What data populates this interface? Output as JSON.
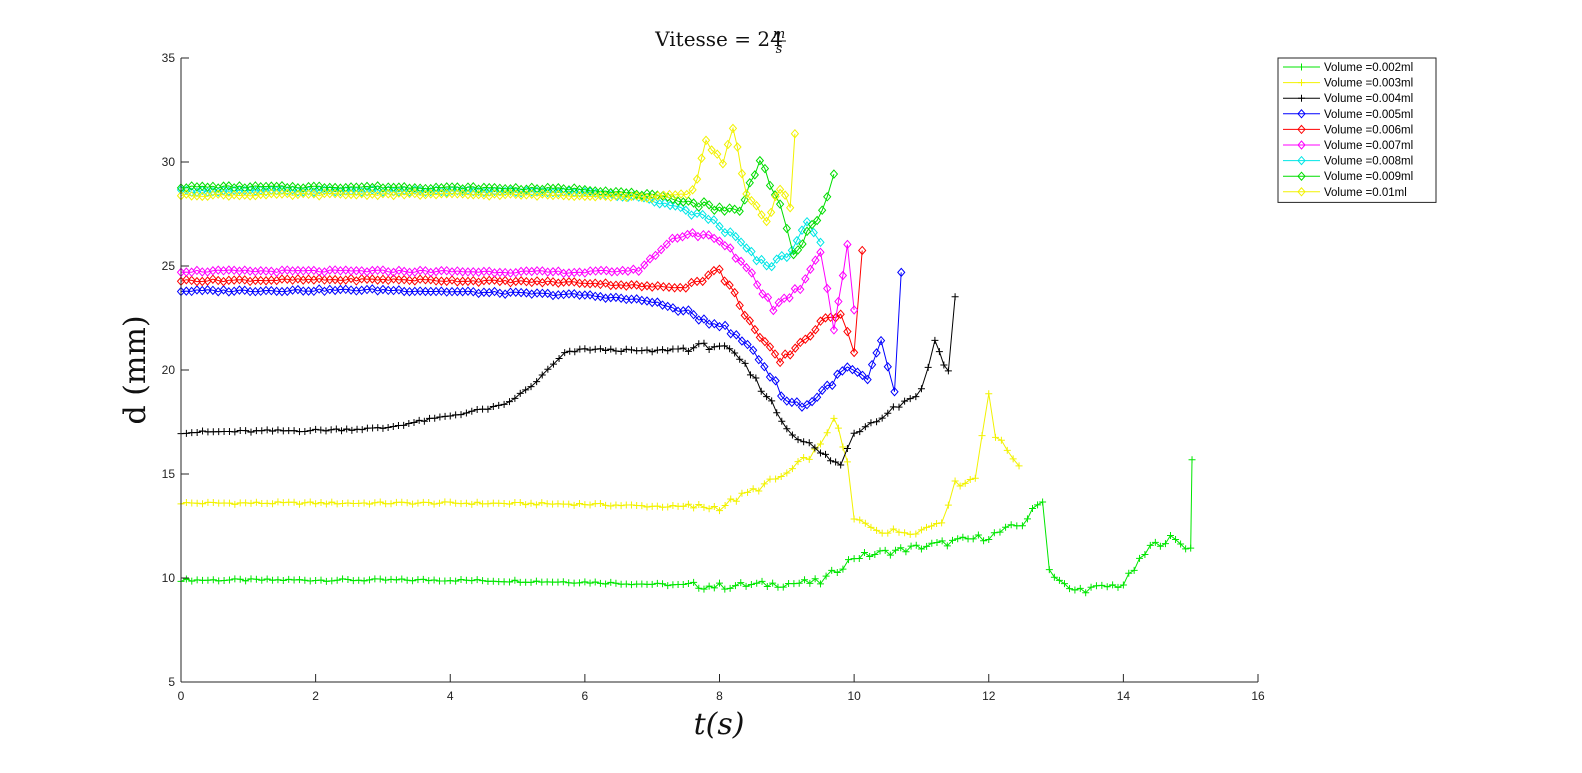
{
  "chart_data": {
    "type": "line",
    "title_main": "Vitesse = 24",
    "title_frac_num": "m",
    "title_frac_den": "s",
    "xlabel": "t(s)",
    "ylabel": "d (mm)",
    "xlim": [
      0,
      16
    ],
    "ylim": [
      5,
      35
    ],
    "x_ticks": [
      "0",
      "2",
      "4",
      "6",
      "8",
      "10",
      "12",
      "14",
      "16"
    ],
    "y_ticks": [
      "5",
      "10",
      "15",
      "20",
      "25",
      "30",
      "35"
    ],
    "grid": false,
    "legend_position": "top-right-outside",
    "series": [
      {
        "name": "Volume =0.002ml",
        "color": "#00e600",
        "marker": "plus",
        "points": [
          [
            0,
            9.9
          ],
          [
            2,
            9.9
          ],
          [
            4,
            9.9
          ],
          [
            6,
            9.8
          ],
          [
            7,
            9.7
          ],
          [
            8,
            9.6
          ],
          [
            9.5,
            9.8
          ],
          [
            10,
            11.0
          ],
          [
            11,
            11.5
          ],
          [
            12,
            12.0
          ],
          [
            12.5,
            12.6
          ],
          [
            12.8,
            13.8
          ],
          [
            12.9,
            10.4
          ],
          [
            13.2,
            9.4
          ],
          [
            13.6,
            9.5
          ],
          [
            14,
            9.7
          ],
          [
            14.4,
            11.5
          ],
          [
            14.7,
            11.9
          ],
          [
            15.0,
            11.4
          ],
          [
            15.02,
            15.8
          ]
        ]
      },
      {
        "name": "Volume =0.003ml",
        "color": "#f2f200",
        "marker": "plus",
        "points": [
          [
            0,
            13.6
          ],
          [
            2,
            13.6
          ],
          [
            4,
            13.6
          ],
          [
            6,
            13.55
          ],
          [
            7,
            13.45
          ],
          [
            8,
            13.4
          ],
          [
            8.5,
            14.2
          ],
          [
            9,
            15.0
          ],
          [
            9.5,
            16.3
          ],
          [
            9.7,
            17.8
          ],
          [
            9.9,
            15.5
          ],
          [
            10.0,
            12.8
          ],
          [
            10.5,
            12.2
          ],
          [
            11,
            12.3
          ],
          [
            11.3,
            12.8
          ],
          [
            11.5,
            14.5
          ],
          [
            11.8,
            14.8
          ],
          [
            12.0,
            19.0
          ],
          [
            12.1,
            16.8
          ],
          [
            12.45,
            15.5
          ]
        ]
      },
      {
        "name": "Volume =0.004ml",
        "color": "#000000",
        "marker": "plus",
        "points": [
          [
            0,
            17.0
          ],
          [
            2,
            17.1
          ],
          [
            3,
            17.2
          ],
          [
            4,
            17.8
          ],
          [
            4.8,
            18.3
          ],
          [
            5.2,
            19.2
          ],
          [
            5.7,
            20.8
          ],
          [
            6,
            21.0
          ],
          [
            7,
            20.9
          ],
          [
            8,
            21.2
          ],
          [
            8.3,
            20.5
          ],
          [
            8.7,
            18.8
          ],
          [
            9,
            17.2
          ],
          [
            9.5,
            16.0
          ],
          [
            9.8,
            15.4
          ],
          [
            10.0,
            17.0
          ],
          [
            10.5,
            18.0
          ],
          [
            11,
            19.0
          ],
          [
            11.2,
            21.4
          ],
          [
            11.4,
            19.9
          ],
          [
            11.5,
            23.5
          ]
        ]
      },
      {
        "name": "Volume =0.005ml",
        "color": "#0000ff",
        "marker": "diamond",
        "points": [
          [
            0,
            23.8
          ],
          [
            3,
            23.85
          ],
          [
            6,
            23.6
          ],
          [
            7,
            23.3
          ],
          [
            8,
            22.2
          ],
          [
            8.5,
            21.0
          ],
          [
            9,
            18.5
          ],
          [
            9.3,
            18.3
          ],
          [
            9.6,
            19.2
          ],
          [
            9.9,
            20.1
          ],
          [
            10.2,
            19.5
          ],
          [
            10.4,
            21.3
          ],
          [
            10.6,
            19.0
          ],
          [
            10.7,
            24.6
          ]
        ]
      },
      {
        "name": "Volume =0.006ml",
        "color": "#ff0000",
        "marker": "diamond",
        "points": [
          [
            0,
            24.3
          ],
          [
            3,
            24.35
          ],
          [
            6,
            24.2
          ],
          [
            7,
            24.0
          ],
          [
            7.5,
            24.0
          ],
          [
            8,
            24.8
          ],
          [
            8.3,
            23.2
          ],
          [
            8.6,
            21.5
          ],
          [
            8.9,
            20.4
          ],
          [
            9.2,
            21.3
          ],
          [
            9.5,
            22.2
          ],
          [
            9.8,
            22.8
          ],
          [
            10.0,
            21.0
          ],
          [
            10.12,
            25.8
          ]
        ]
      },
      {
        "name": "Volume =0.007ml",
        "color": "#ff00ff",
        "marker": "diamond",
        "points": [
          [
            0,
            24.75
          ],
          [
            3,
            24.75
          ],
          [
            6,
            24.7
          ],
          [
            6.8,
            24.8
          ],
          [
            7.3,
            26.3
          ],
          [
            7.6,
            26.6
          ],
          [
            8,
            26.2
          ],
          [
            8.4,
            25.0
          ],
          [
            8.8,
            23.0
          ],
          [
            9.2,
            24.0
          ],
          [
            9.5,
            25.8
          ],
          [
            9.7,
            22.0
          ],
          [
            9.9,
            25.9
          ],
          [
            10.0,
            22.8
          ]
        ]
      },
      {
        "name": "Volume =0.008ml",
        "color": "#00e6e6",
        "marker": "diamond",
        "points": [
          [
            0,
            28.6
          ],
          [
            3,
            28.6
          ],
          [
            6,
            28.55
          ],
          [
            6.8,
            28.3
          ],
          [
            7.5,
            27.7
          ],
          [
            8,
            27.0
          ],
          [
            8.4,
            25.8
          ],
          [
            8.7,
            25.0
          ],
          [
            9.0,
            25.5
          ],
          [
            9.3,
            27.2
          ],
          [
            9.5,
            26.0
          ]
        ]
      },
      {
        "name": "Volume =0.009ml",
        "color": "#00dd00",
        "marker": "diamond",
        "points": [
          [
            0,
            28.8
          ],
          [
            3,
            28.8
          ],
          [
            6,
            28.7
          ],
          [
            7,
            28.4
          ],
          [
            8,
            27.8
          ],
          [
            8.3,
            27.6
          ],
          [
            8.6,
            30.2
          ],
          [
            8.9,
            27.8
          ],
          [
            9.1,
            25.5
          ],
          [
            9.3,
            26.5
          ],
          [
            9.6,
            28.2
          ],
          [
            9.7,
            29.3
          ]
        ]
      },
      {
        "name": "Volume =0.01ml",
        "color": "#f2f200",
        "marker": "diamond",
        "points": [
          [
            0,
            28.4
          ],
          [
            3,
            28.45
          ],
          [
            6,
            28.4
          ],
          [
            7,
            28.3
          ],
          [
            7.6,
            28.5
          ],
          [
            7.8,
            31.0
          ],
          [
            8.05,
            30.0
          ],
          [
            8.2,
            31.7
          ],
          [
            8.4,
            28.5
          ],
          [
            8.7,
            27.0
          ],
          [
            8.9,
            28.8
          ],
          [
            9.05,
            27.8
          ],
          [
            9.12,
            31.3
          ]
        ]
      }
    ]
  }
}
